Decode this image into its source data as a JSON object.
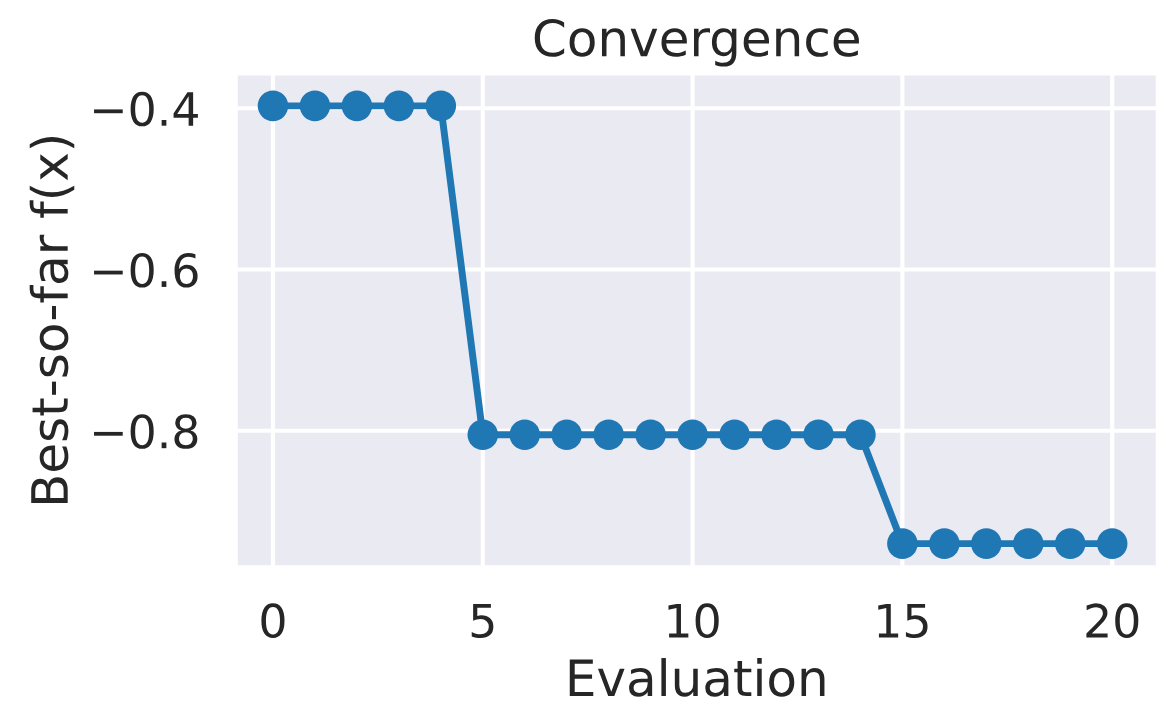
{
  "chart_data": {
    "type": "line",
    "title": "Convergence",
    "xlabel": "Evaluation",
    "ylabel": "Best-so-far f(x)",
    "x": [
      0,
      1,
      2,
      3,
      4,
      5,
      6,
      7,
      8,
      9,
      10,
      11,
      12,
      13,
      14,
      15,
      16,
      17,
      18,
      19,
      20
    ],
    "series": [
      {
        "color": "#1f77b4",
        "values": [
          -0.397,
          -0.397,
          -0.397,
          -0.397,
          -0.397,
          -0.805,
          -0.805,
          -0.805,
          -0.805,
          -0.805,
          -0.805,
          -0.805,
          -0.805,
          -0.805,
          -0.805,
          -0.94,
          -0.94,
          -0.94,
          -0.94,
          -0.94,
          -0.94
        ]
      }
    ],
    "xlim": [
      -0.9,
      21.1
    ],
    "ylim": [
      -0.97,
      -0.356
    ],
    "xticks": [
      0,
      5,
      10,
      15,
      20
    ],
    "yticks": [
      {
        "value": -0.4,
        "label": "−0.4"
      },
      {
        "value": -0.6,
        "label": "−0.6"
      },
      {
        "value": -0.8,
        "label": "−0.8"
      }
    ],
    "grid": true,
    "marker": "circle",
    "line_style": "solid"
  }
}
